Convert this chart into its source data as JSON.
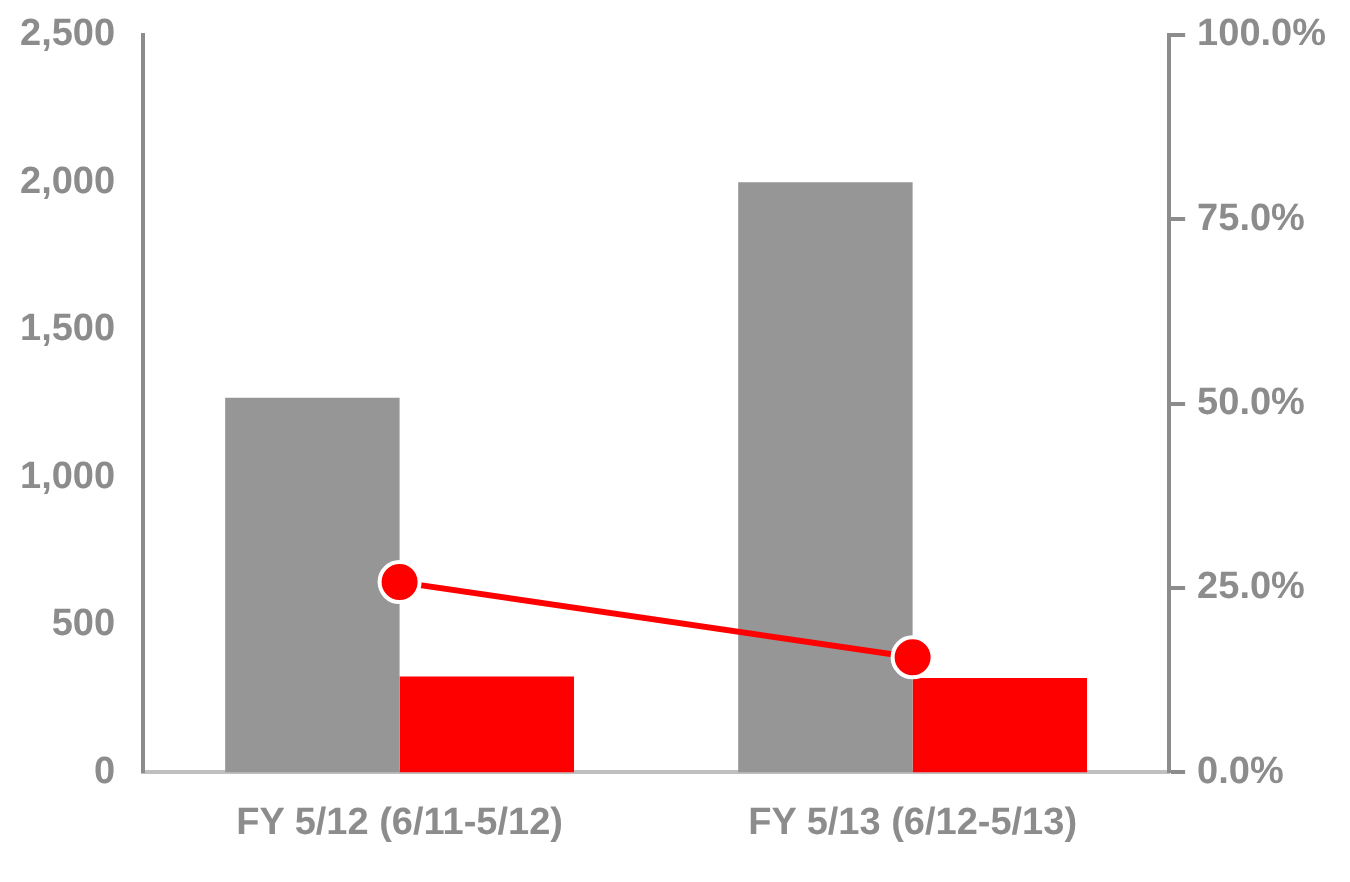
{
  "chart_data": {
    "type": "bar",
    "categories": [
      "FY 5/12 (6/11-5/12)",
      "FY 5/13 (6/12-5/13)"
    ],
    "series": [
      {
        "color": "#969696",
        "values": [
          1270,
          2000
        ]
      },
      {
        "color": "#ff0000",
        "values": [
          325,
          320
        ]
      },
      {
        "type": "line",
        "axis": "y2",
        "color": "#ff0000",
        "values": [
          25.8,
          15.6
        ]
      }
    ],
    "ylim": [
      0,
      2500
    ],
    "yticks": [
      {
        "value": 0,
        "label": "0"
      },
      {
        "value": 500,
        "label": "500"
      },
      {
        "value": 1000,
        "label": "1,000"
      },
      {
        "value": 1500,
        "label": "1,500"
      },
      {
        "value": 2000,
        "label": "2,000"
      },
      {
        "value": 2500,
        "label": "2,500"
      }
    ],
    "y2lim": [
      0,
      100
    ],
    "y2ticks": [
      {
        "value": 0,
        "label": "0.0%"
      },
      {
        "value": 25,
        "label": "25.0%"
      },
      {
        "value": 50,
        "label": "50.0%"
      },
      {
        "value": 75,
        "label": "75.0%"
      },
      {
        "value": 100,
        "label": "100.0%"
      }
    ],
    "grid": false,
    "legend": false,
    "marker": "circle"
  }
}
